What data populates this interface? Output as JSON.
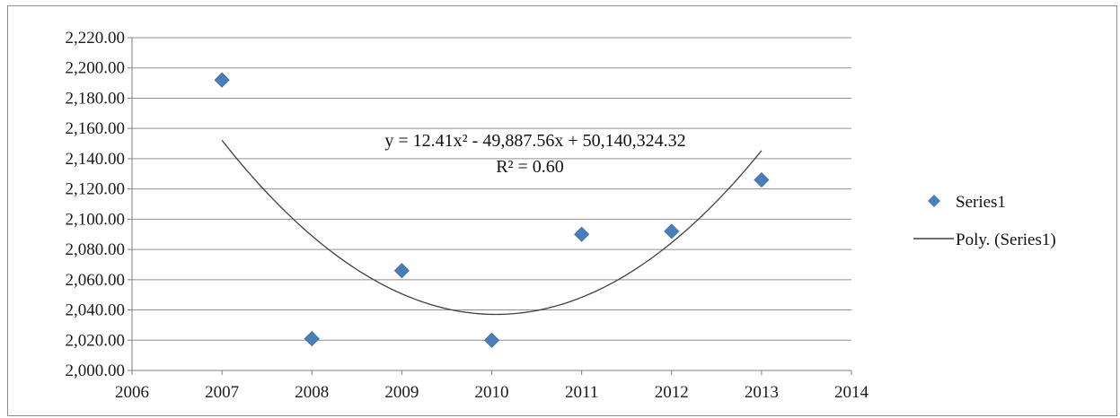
{
  "chart_data": {
    "type": "scatter",
    "title": "",
    "xlabel": "",
    "ylabel": "",
    "xlim": [
      2006,
      2014
    ],
    "ylim": [
      2000,
      2220
    ],
    "x_ticks": [
      "2006",
      "2007",
      "2008",
      "2009",
      "2010",
      "2011",
      "2012",
      "2013",
      "2014"
    ],
    "y_ticks": [
      "2,000.00",
      "2,020.00",
      "2,040.00",
      "2,060.00",
      "2,080.00",
      "2,100.00",
      "2,120.00",
      "2,140.00",
      "2,160.00",
      "2,180.00",
      "2,200.00",
      "2,220.00"
    ],
    "grid": "horizontal",
    "legend_position": "right",
    "series": [
      {
        "name": "Series1",
        "marker": "diamond",
        "color": "#4a7ebb",
        "x": [
          2007,
          2008,
          2009,
          2010,
          2011,
          2012,
          2013
        ],
        "y": [
          2192,
          2021,
          2066,
          2020,
          2090,
          2092,
          2126
        ]
      }
    ],
    "trendline": {
      "name": "Poly. (Series1)",
      "type": "polynomial",
      "order": 2,
      "color": "#404040",
      "equation": "y = 12.41x² - 49,887.56x + 50,140,324.32",
      "r_squared": "R² = 0.60",
      "x_range": [
        2007,
        2013
      ]
    }
  }
}
